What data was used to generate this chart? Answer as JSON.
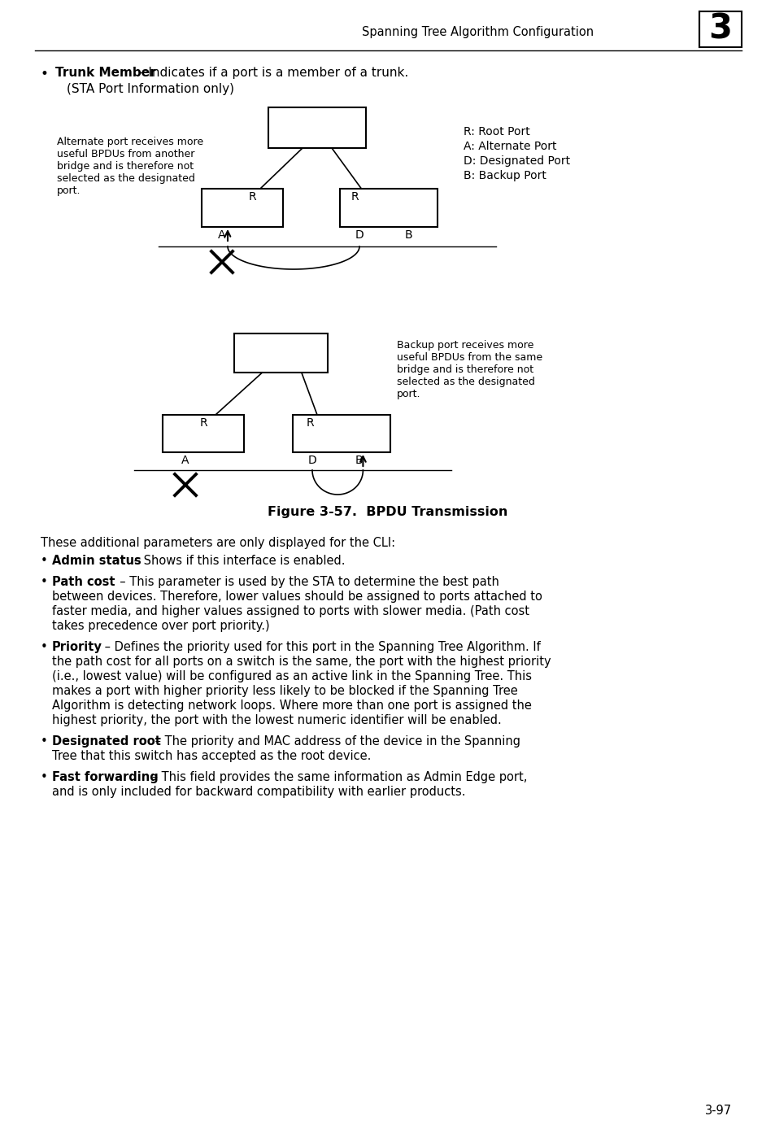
{
  "header_text": "Spanning Tree Algorithm Configuration",
  "header_number": "3",
  "legend_lines": [
    "R: Root Port",
    "A: Alternate Port",
    "D: Designated Port",
    "B: Backup Port"
  ],
  "alt_note": "Alternate port receives more\nuseful BPDUs from another\nbridge and is therefore not\nselected as the designated\nport.",
  "backup_note": "Backup port receives more\nuseful BPDUs from the same\nbridge and is therefore not\nselected as the designated\nport.",
  "figure_caption": "Figure 3-57.  BPDU Transmission",
  "page_number": "3-97",
  "bg_color": "#ffffff"
}
